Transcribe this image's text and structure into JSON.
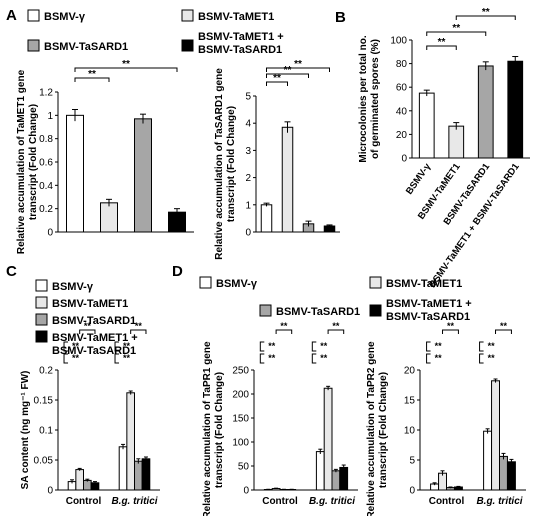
{
  "panels": {
    "A": "A",
    "B": "B",
    "C": "C",
    "D": "D"
  },
  "legends": {
    "A": [
      {
        "label": "BSMV-γ",
        "color": "#ffffff"
      },
      {
        "label": "BSMV-TaMET1",
        "color": "#e8e8e8"
      },
      {
        "label": "BSMV-TaSARD1",
        "color": "#a6a6a6"
      },
      {
        "label": "BSMV-TaMET1 + BSMV-TaSARD1",
        "color": "#000000"
      }
    ],
    "C": [
      {
        "label": "BSMV-γ",
        "color": "#ffffff"
      },
      {
        "label": "BSMV-TaMET1",
        "color": "#e8e8e8"
      },
      {
        "label": "BSMV-TaSARD1",
        "color": "#a6a6a6"
      },
      {
        "label": "BSMV-TaMET1 + BSMV-TaSARD1",
        "color": "#000000"
      }
    ],
    "D": [
      {
        "label": "BSMV-γ",
        "color": "#ffffff"
      },
      {
        "label": "BSMV-TaMET1",
        "color": "#e8e8e8"
      },
      {
        "label": "BSMV-TaSARD1",
        "color": "#a6a6a6"
      },
      {
        "label": "BSMV-TaMET1 + BSMV-TaSARD1",
        "color": "#000000"
      }
    ]
  },
  "sig_label": "**",
  "chart_data": [
    {
      "panel": "A",
      "type": "bar",
      "ylabel": "Relative accumulation of TaMET1 gene transcript (Fold Change)",
      "ylim": [
        0,
        1.2
      ],
      "yticks": [
        "0",
        "0.2",
        "0.4",
        "0.6",
        "0.8",
        "1",
        "1.2"
      ],
      "categories": [
        "BSMV-γ",
        "BSMV-TaMET1",
        "BSMV-TaSARD1",
        "BSMV-TaMET1 + BSMV-TaSARD1"
      ],
      "values": [
        1.0,
        0.25,
        0.97,
        0.17
      ],
      "errors": [
        0.05,
        0.03,
        0.04,
        0.03
      ]
    },
    {
      "panel": "A",
      "type": "bar",
      "ylabel": "Relative accumulation of TaSARD1 gene transcript (Fold Change)",
      "ylim": [
        0,
        5
      ],
      "yticks": [
        "0",
        "1",
        "2",
        "3",
        "4",
        "5"
      ],
      "categories": [
        "BSMV-γ",
        "BSMV-TaMET1",
        "BSMV-TaSARD1",
        "BSMV-TaMET1 + BSMV-TaSARD1"
      ],
      "values": [
        1.0,
        3.85,
        0.3,
        0.22
      ],
      "errors": [
        0.06,
        0.2,
        0.1,
        0.04
      ]
    },
    {
      "panel": "B",
      "type": "bar",
      "ylabel": "Microcolonies per total no. of germinated spores (%)",
      "ylim": [
        0,
        100
      ],
      "yticks": [
        "0",
        "20",
        "40",
        "60",
        "80",
        "100"
      ],
      "categories": [
        "BSMV-γ",
        "BSMV-TaMET1",
        "BSMV-TaSARD1",
        "BSMV-TaMET1 + BSMV-TaSARD1"
      ],
      "values": [
        55,
        27,
        78,
        82
      ],
      "errors": [
        2.5,
        3,
        3.5,
        4
      ]
    },
    {
      "panel": "C",
      "type": "bar",
      "ylabel": "SA content (ng mg⁻¹ FW)",
      "ylim": [
        0,
        0.2
      ],
      "yticks": [
        "0",
        "0.05",
        "0.1",
        "0.15",
        "0.2"
      ],
      "categories": [
        "Control",
        "B.g. tritici"
      ],
      "series": [
        {
          "name": "BSMV-γ",
          "values": [
            0.014,
            0.072
          ],
          "errors": [
            0.003,
            0.004
          ]
        },
        {
          "name": "BSMV-TaMET1",
          "values": [
            0.034,
            0.162
          ],
          "errors": [
            0.002,
            0.003
          ]
        },
        {
          "name": "BSMV-TaSARD1",
          "values": [
            0.016,
            0.048
          ],
          "errors": [
            0.002,
            0.004
          ]
        },
        {
          "name": "BSMV-TaMET1 + BSMV-TaSARD1",
          "values": [
            0.012,
            0.052
          ],
          "errors": [
            0.002,
            0.003
          ]
        }
      ]
    },
    {
      "panel": "D",
      "type": "bar",
      "ylabel": "Relative accumulation of TaPR1 gene transcript (Fold Change)",
      "ylim": [
        0,
        250
      ],
      "yticks": [
        "0",
        "50",
        "100",
        "150",
        "200",
        "250"
      ],
      "categories": [
        "Control",
        "B.g. tritici"
      ],
      "series": [
        {
          "name": "BSMV-γ",
          "values": [
            1,
            80
          ],
          "errors": [
            0.5,
            5
          ]
        },
        {
          "name": "BSMV-TaMET1",
          "values": [
            3,
            212
          ],
          "errors": [
            0.8,
            4
          ]
        },
        {
          "name": "BSMV-TaSARD1",
          "values": [
            1,
            40
          ],
          "errors": [
            0.5,
            3
          ]
        },
        {
          "name": "BSMV-TaMET1 + BSMV-TaSARD1",
          "values": [
            1,
            47
          ],
          "errors": [
            0.5,
            5
          ]
        }
      ]
    },
    {
      "panel": "D",
      "type": "bar",
      "ylabel": "Relative accumulation of TaPR2 gene transcript (Fold Change)",
      "ylim": [
        0,
        20
      ],
      "yticks": [
        "0",
        "5",
        "10",
        "15",
        "20"
      ],
      "categories": [
        "Control",
        "B.g. tritici"
      ],
      "series": [
        {
          "name": "BSMV-γ",
          "values": [
            1.0,
            9.8
          ],
          "errors": [
            0.2,
            0.4
          ]
        },
        {
          "name": "BSMV-TaMET1",
          "values": [
            2.8,
            18.2
          ],
          "errors": [
            0.4,
            0.3
          ]
        },
        {
          "name": "BSMV-TaSARD1",
          "values": [
            0.4,
            5.6
          ],
          "errors": [
            0.1,
            0.5
          ]
        },
        {
          "name": "BSMV-TaMET1 + BSMV-TaSARD1",
          "values": [
            0.5,
            4.7
          ],
          "errors": [
            0.1,
            0.4
          ]
        }
      ]
    }
  ]
}
